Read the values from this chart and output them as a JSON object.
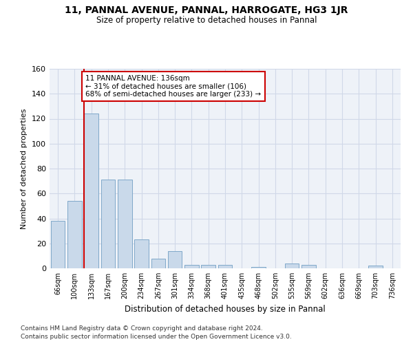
{
  "title": "11, PANNAL AVENUE, PANNAL, HARROGATE, HG3 1JR",
  "subtitle": "Size of property relative to detached houses in Pannal",
  "xlabel": "Distribution of detached houses by size in Pannal",
  "ylabel": "Number of detached properties",
  "bar_labels": [
    "66sqm",
    "100sqm",
    "133sqm",
    "167sqm",
    "200sqm",
    "234sqm",
    "267sqm",
    "301sqm",
    "334sqm",
    "368sqm",
    "401sqm",
    "435sqm",
    "468sqm",
    "502sqm",
    "535sqm",
    "569sqm",
    "602sqm",
    "636sqm",
    "669sqm",
    "703sqm",
    "736sqm"
  ],
  "bar_values": [
    38,
    54,
    124,
    71,
    71,
    23,
    8,
    14,
    3,
    3,
    3,
    0,
    1,
    0,
    4,
    3,
    0,
    0,
    0,
    2,
    0
  ],
  "bar_color": "#c9d9ea",
  "bar_edge_color": "#7fa8c9",
  "grid_color": "#d0d8e8",
  "bg_color": "#eef2f8",
  "red_line_index": 2,
  "annotation_text": "11 PANNAL AVENUE: 136sqm\n← 31% of detached houses are smaller (106)\n68% of semi-detached houses are larger (233) →",
  "annotation_box_color": "#ffffff",
  "annotation_box_edge": "#cc0000",
  "footnote1": "Contains HM Land Registry data © Crown copyright and database right 2024.",
  "footnote2": "Contains public sector information licensed under the Open Government Licence v3.0.",
  "ylim": [
    0,
    160
  ],
  "yticks": [
    0,
    20,
    40,
    60,
    80,
    100,
    120,
    140,
    160
  ]
}
